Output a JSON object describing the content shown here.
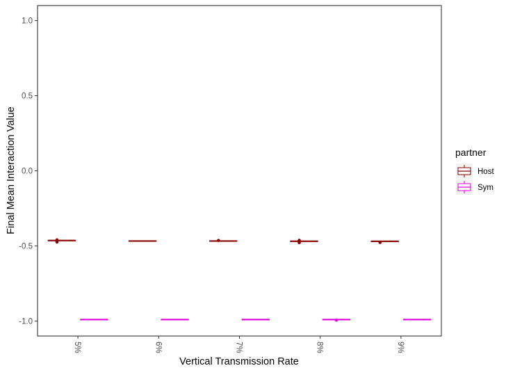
{
  "chart_data": {
    "type": "boxplot",
    "xlabel": "Vertical Transmission Rate",
    "ylabel": "Final Mean Interaction Value",
    "categories": [
      "5%",
      "6%",
      "7%",
      "8%",
      "9%"
    ],
    "ylim": [
      -1.1,
      1.1
    ],
    "yticks": [
      1.0,
      0.5,
      0.0,
      -0.5,
      -1.0
    ],
    "ytick_labels": [
      "1.0",
      "0.5",
      "0.0",
      "-0.5",
      "-1.0"
    ],
    "grid": false,
    "legend": {
      "title": "partner",
      "position": "right"
    },
    "series": [
      {
        "name": "Host",
        "color": "#8b0000",
        "boxes": [
          {
            "category": "5%",
            "min": -0.467,
            "q1": -0.465,
            "median": -0.464,
            "q3": -0.463,
            "max": -0.462,
            "outliers": [
              -0.46,
              -0.468,
              -0.474
            ]
          },
          {
            "category": "6%",
            "min": -0.469,
            "q1": -0.468,
            "median": -0.467,
            "q3": -0.466,
            "max": -0.465,
            "outliers": []
          },
          {
            "category": "7%",
            "min": -0.469,
            "q1": -0.468,
            "median": -0.467,
            "q3": -0.466,
            "max": -0.465,
            "outliers": [
              -0.464
            ]
          },
          {
            "category": "8%",
            "min": -0.474,
            "q1": -0.471,
            "median": -0.469,
            "q3": -0.467,
            "max": -0.465,
            "outliers": [
              -0.463,
              -0.478
            ]
          },
          {
            "category": "9%",
            "min": -0.471,
            "q1": -0.47,
            "median": -0.469,
            "q3": -0.468,
            "max": -0.467,
            "outliers": [
              -0.477
            ]
          }
        ]
      },
      {
        "name": "Sym",
        "color": "#e000e0",
        "boxes": [
          {
            "category": "5%",
            "min": -0.991,
            "q1": -0.99,
            "median": -0.99,
            "q3": -0.989,
            "max": -0.988,
            "outliers": []
          },
          {
            "category": "6%",
            "min": -0.991,
            "q1": -0.99,
            "median": -0.99,
            "q3": -0.989,
            "max": -0.988,
            "outliers": []
          },
          {
            "category": "7%",
            "min": -0.991,
            "q1": -0.99,
            "median": -0.99,
            "q3": -0.989,
            "max": -0.988,
            "outliers": []
          },
          {
            "category": "8%",
            "min": -0.992,
            "q1": -0.991,
            "median": -0.99,
            "q3": -0.989,
            "max": -0.988,
            "outliers": [
              -0.994
            ]
          },
          {
            "category": "9%",
            "min": -0.991,
            "q1": -0.99,
            "median": -0.99,
            "q3": -0.989,
            "max": -0.988,
            "outliers": []
          }
        ]
      }
    ]
  },
  "colors": {
    "axis": "#333333",
    "tick_text": "#4d4d4d",
    "legend_key_bg": "#f2f2f2"
  }
}
